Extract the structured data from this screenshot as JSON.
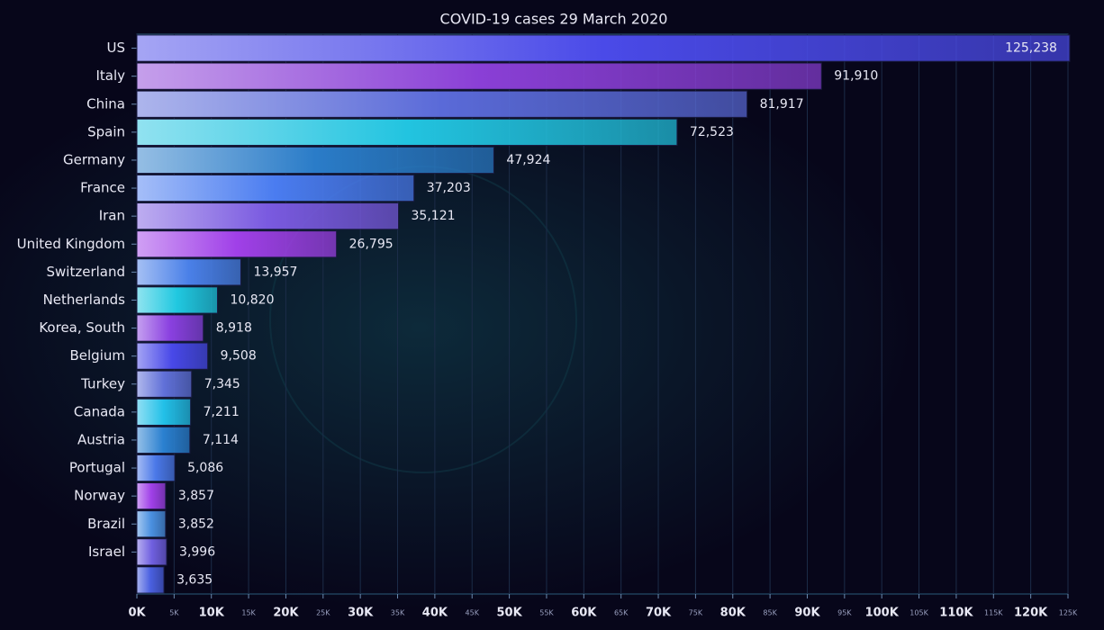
{
  "chart_data": {
    "type": "bar",
    "orientation": "horizontal",
    "title": "COVID-19 cases 29 March 2020",
    "categories": [
      "US",
      "Italy",
      "China",
      "Spain",
      "Germany",
      "France",
      "Iran",
      "United Kingdom",
      "Switzerland",
      "Netherlands",
      "Korea, South",
      "Belgium",
      "Turkey",
      "Canada",
      "Austria",
      "Portugal",
      "Norway",
      "Brazil",
      "Israel",
      null
    ],
    "values": [
      125238,
      91910,
      81917,
      72523,
      47924,
      37203,
      35121,
      26795,
      13957,
      10820,
      8918,
      9508,
      7345,
      7211,
      7114,
      5086,
      3857,
      3852,
      3996,
      3635
    ],
    "value_labels": [
      "125,238",
      "91,910",
      "81,917",
      "72,523",
      "47,924",
      "37,203",
      "35,121",
      "26,795",
      "13,957",
      "10,820",
      "8,918",
      "9,508",
      "7,345",
      "7,211",
      "7,114",
      "5,086",
      "3,857",
      "3,852",
      "3,996",
      "3,635"
    ],
    "colors": [
      "#4a4ae8",
      "#8a3fd6",
      "#5a6ad8",
      "#22c4e0",
      "#2a7cc8",
      "#4a7cf0",
      "#7a5ae0",
      "#a040e8",
      "#4a80e8",
      "#20c8e0",
      "#8a40e0",
      "#4848e8",
      "#6070d8",
      "#22c0e8",
      "#2a80d0",
      "#4a78e8",
      "#a040e8",
      "#4a90e0",
      "#7060e0",
      "#4a60e0"
    ],
    "xlim": [
      0,
      125000
    ],
    "xticks": [
      {
        "value": 0,
        "label": "0K"
      },
      {
        "value": 5000,
        "label": "5K"
      },
      {
        "value": 10000,
        "label": "10K"
      },
      {
        "value": 15000,
        "label": "15K"
      },
      {
        "value": 20000,
        "label": "20K"
      },
      {
        "value": 25000,
        "label": "25K"
      },
      {
        "value": 30000,
        "label": "30K"
      },
      {
        "value": 35000,
        "label": "35K"
      },
      {
        "value": 40000,
        "label": "40K"
      },
      {
        "value": 45000,
        "label": "45K"
      },
      {
        "value": 50000,
        "label": "50K"
      },
      {
        "value": 55000,
        "label": "55K"
      },
      {
        "value": 60000,
        "label": "60K"
      },
      {
        "value": 65000,
        "label": "65K"
      },
      {
        "value": 70000,
        "label": "70K"
      },
      {
        "value": 75000,
        "label": "75K"
      },
      {
        "value": 80000,
        "label": "80K"
      },
      {
        "value": 85000,
        "label": "85K"
      },
      {
        "value": 90000,
        "label": "90K"
      },
      {
        "value": 95000,
        "label": "95K"
      },
      {
        "value": 100000,
        "label": "100K"
      },
      {
        "value": 105000,
        "label": "105K"
      },
      {
        "value": 110000,
        "label": "110K"
      },
      {
        "value": 115000,
        "label": "115K"
      },
      {
        "value": 120000,
        "label": "120K"
      },
      {
        "value": 125000,
        "label": "125K"
      }
    ],
    "grid": true
  }
}
